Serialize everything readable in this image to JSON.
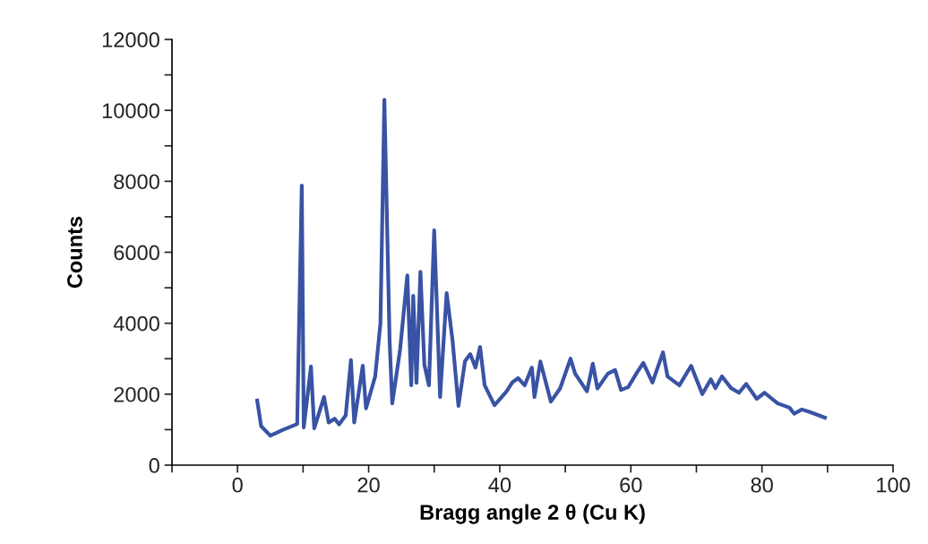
{
  "chart_data": {
    "type": "line",
    "xlabel": "Bragg angle 2 θ (Cu K)",
    "ylabel": "Counts",
    "xlim": [
      -10,
      100
    ],
    "ylim": [
      0,
      12000
    ],
    "xticks": [
      {
        "value": -10,
        "label": null
      },
      0,
      {
        "value": 10,
        "label": null
      },
      20,
      {
        "value": 30,
        "label": null
      },
      40,
      {
        "value": 50,
        "label": null
      },
      60,
      {
        "value": 70,
        "label": null
      },
      80,
      {
        "value": 90,
        "label": null
      },
      100
    ],
    "yticks": [
      0,
      {
        "value": 1000,
        "label": null
      },
      2000,
      {
        "value": 3000,
        "label": null
      },
      4000,
      {
        "value": 5000,
        "label": null
      },
      6000,
      {
        "value": 7000,
        "label": null
      },
      8000,
      {
        "value": 9000,
        "label": null
      },
      10000,
      {
        "value": 11000,
        "label": null
      },
      12000
    ],
    "grid": false,
    "marker": "none",
    "line_style": "solid",
    "series": [
      {
        "color": "#3953a4",
        "x": [
          3.0,
          3.6,
          5.0,
          7.0,
          9.1,
          9.8,
          10.1,
          11.2,
          11.7,
          13.2,
          13.9,
          14.8,
          15.5,
          16.5,
          17.3,
          17.8,
          19.1,
          19.6,
          21.0,
          21.8,
          22.4,
          22.8,
          23.2,
          23.6,
          24.8,
          25.9,
          26.5,
          26.8,
          27.3,
          27.9,
          28.5,
          29.2,
          30.0,
          30.9,
          31.9,
          32.8,
          33.7,
          34.7,
          35.5,
          36.3,
          37.0,
          37.7,
          39.2,
          41.0,
          41.9,
          42.8,
          43.8,
          44.9,
          45.3,
          46.2,
          47.8,
          49.2,
          50.8,
          51.5,
          53.3,
          54.2,
          54.9,
          56.5,
          57.6,
          58.5,
          59.6,
          61.0,
          61.9,
          63.3,
          64.9,
          65.6,
          67.4,
          69.2,
          70.9,
          72.2,
          72.9,
          73.9,
          75.3,
          76.5,
          77.6,
          79.2,
          80.4,
          82.4,
          84.2,
          84.9,
          86.1,
          87.4,
          89.6
        ],
        "values": [
          1820,
          1100,
          830,
          1000,
          1160,
          7880,
          1060,
          2780,
          1040,
          1920,
          1200,
          1310,
          1150,
          1400,
          2960,
          1200,
          2800,
          1600,
          2500,
          4000,
          10300,
          6900,
          3500,
          1740,
          3260,
          5350,
          2250,
          4770,
          2320,
          5450,
          2830,
          2250,
          6620,
          1920,
          4850,
          3510,
          1670,
          2930,
          3130,
          2750,
          3330,
          2250,
          1690,
          2070,
          2330,
          2450,
          2250,
          2750,
          1920,
          2920,
          1790,
          2160,
          3000,
          2580,
          2080,
          2860,
          2160,
          2580,
          2680,
          2120,
          2200,
          2630,
          2880,
          2330,
          3180,
          2500,
          2250,
          2800,
          2000,
          2420,
          2170,
          2500,
          2170,
          2040,
          2290,
          1870,
          2040,
          1740,
          1620,
          1450,
          1570,
          1490,
          1340
        ]
      }
    ]
  }
}
